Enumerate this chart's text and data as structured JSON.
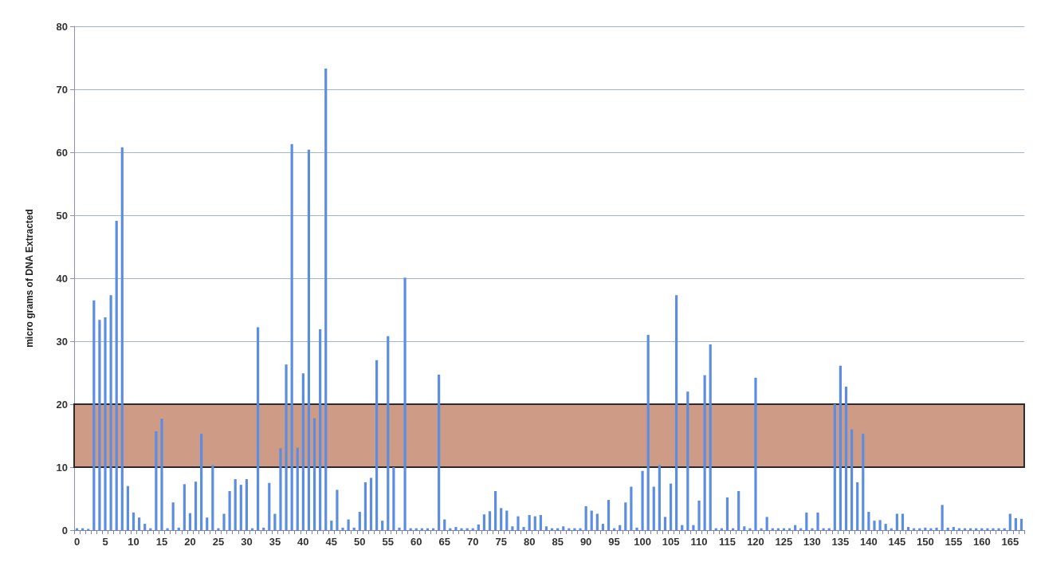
{
  "chart_data": {
    "type": "bar",
    "ylabel": "micro grams of DNA Extracted",
    "categories": [
      "0",
      null,
      null,
      null,
      null,
      "5",
      null,
      null,
      null,
      null,
      "10",
      null,
      null,
      null,
      null,
      "15",
      null,
      null,
      null,
      null,
      "20",
      null,
      null,
      null,
      null,
      "25",
      null,
      null,
      null,
      null,
      "30",
      null,
      null,
      null,
      null,
      "35",
      null,
      null,
      null,
      null,
      "40",
      null,
      null,
      null,
      null,
      "45",
      null,
      null,
      null,
      null,
      "50",
      null,
      null,
      null,
      null,
      "55",
      null,
      null,
      null,
      null,
      "60",
      null,
      null,
      null,
      null,
      "65",
      null,
      null,
      null,
      null,
      "70",
      null,
      null,
      null,
      null,
      "75",
      null,
      null,
      null,
      null,
      "80",
      null,
      null,
      null,
      null,
      "85",
      null,
      null,
      null,
      null,
      "90",
      null,
      null,
      null,
      null,
      "95",
      null,
      null,
      null,
      null,
      "100",
      null,
      null,
      null,
      null,
      "105",
      null,
      null,
      null,
      null,
      "110",
      null,
      null,
      null,
      null,
      "115",
      null,
      null,
      null,
      null,
      "120",
      null,
      null,
      null,
      null,
      "125",
      null,
      null,
      null,
      null,
      "130",
      null,
      null,
      null,
      null,
      "135",
      null,
      null,
      null,
      null,
      "140",
      null,
      null,
      null,
      null,
      "145",
      null,
      null,
      null,
      null,
      "150",
      null,
      null,
      null,
      null,
      "155",
      null,
      null,
      null,
      null,
      "160",
      null,
      null,
      null,
      null,
      "165",
      null,
      null
    ],
    "values": [
      0.3,
      0.3,
      0.2,
      36.5,
      33.4,
      33.8,
      37.3,
      49.1,
      60.8,
      7,
      2.8,
      2,
      1,
      0.3,
      15.7,
      17.7,
      0.3,
      4.4,
      0.4,
      7.3,
      2.7,
      7.7,
      15.3,
      2,
      10.3,
      0.3,
      2.6,
      6.2,
      8.1,
      7.2,
      8.1,
      0.3,
      32.2,
      0.4,
      7.5,
      2.6,
      13,
      26.3,
      61.3,
      13.1,
      24.9,
      60.4,
      17.8,
      31.9,
      73.3,
      1.5,
      6.4,
      0.4,
      1.7,
      0.4,
      2.9,
      7.6,
      8.3,
      27,
      1.5,
      30.8,
      10,
      0.4,
      40.1,
      0.3,
      0.3,
      0.3,
      0.3,
      0.3,
      24.7,
      1.7,
      0.3,
      0.5,
      0.3,
      0.3,
      0.3,
      0.9,
      2.5,
      3,
      6.2,
      3.5,
      3.1,
      0.6,
      2.2,
      0.5,
      2.4,
      2.2,
      2.4,
      0.6,
      0.3,
      0.3,
      0.6,
      0.3,
      0.3,
      0.3,
      3.8,
      3.1,
      2.6,
      1,
      4.8,
      0.3,
      0.8,
      4.4,
      6.9,
      0.4,
      9.4,
      31,
      6.9,
      10.3,
      2.1,
      7.4,
      37.3,
      0.8,
      22,
      0.8,
      4.7,
      24.6,
      29.5,
      0.3,
      0.3,
      5.2,
      0.3,
      6.2,
      0.6,
      0.3,
      24.2,
      0.3,
      2.1,
      0.3,
      0.3,
      0.3,
      0.3,
      0.8,
      0.3,
      2.8,
      0.3,
      2.8,
      0.3,
      0.3,
      20,
      26.1,
      22.8,
      16,
      7.6,
      15.3,
      2.9,
      1.5,
      1.6,
      1,
      0.3,
      2.6,
      2.6,
      0.5,
      0.3,
      0.3,
      0.4,
      0.3,
      0.4,
      4,
      0.4,
      0.5,
      0.3,
      0.3,
      0.3,
      0.3,
      0.3,
      0.3,
      0.3,
      0.3,
      0.3,
      2.6,
      1.9,
      1.8
    ],
    "color": "#5b8de0",
    "ylim": [
      0,
      80
    ],
    "yticks": [
      0,
      10,
      20,
      30,
      40,
      50,
      60,
      70,
      80
    ],
    "grid": "y",
    "bands": [
      {
        "axis": "y",
        "from": 10,
        "to": 20,
        "color": "#c68a72"
      }
    ]
  }
}
